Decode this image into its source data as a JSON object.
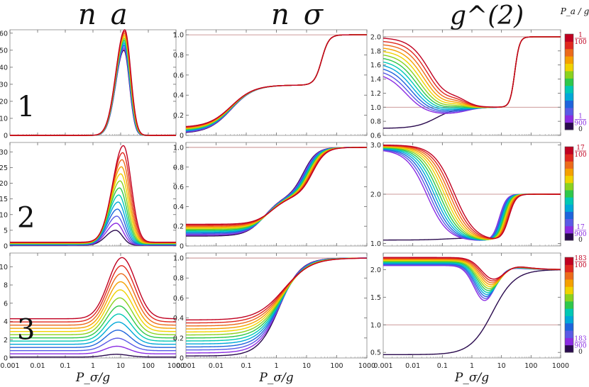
{
  "column_titles": [
    "n_a",
    "n_σ",
    "g^(2)"
  ],
  "colorbar_label": "P_a / g",
  "row_labels": [
    "1",
    "2",
    "3"
  ],
  "x_axis_label": "P_σ/g",
  "x_ticks": [
    "0.001",
    "0.01",
    "0.1",
    "1",
    "10",
    "100",
    "1000"
  ],
  "colors": {
    "palette": [
      "#2a0a4e",
      "#8a2be2",
      "#5a5ae6",
      "#1e64dc",
      "#00a8d8",
      "#00c8b4",
      "#2ec84a",
      "#8ad21e",
      "#f0d200",
      "#f5a000",
      "#ec6a1a",
      "#e0281e",
      "#c00020"
    ],
    "reference_line": "#a04040",
    "tick_red": "#c00020",
    "tick_purple": "#8a2be2"
  },
  "colorbars": [
    {
      "top_num": "1",
      "top_den": "100",
      "low_num": "1",
      "low_den": "900",
      "zero": "0"
    },
    {
      "top_num": "17",
      "top_den": "100",
      "low_num": "17",
      "low_den": "900",
      "zero": "0"
    },
    {
      "top_num": "183",
      "top_den": "100",
      "low_num": "183",
      "low_den": "900",
      "zero": "0"
    }
  ],
  "chart_data": [
    {
      "type": "line",
      "panel": "row1-na",
      "title": "n_a",
      "xlabel": "",
      "ylabel": "",
      "x_scale": "log10",
      "xlim": [
        0.001,
        1000
      ],
      "ylim": [
        0,
        62
      ],
      "yticks": [
        0,
        10,
        20,
        30,
        40,
        50,
        60
      ],
      "ytick_labels": [
        "0",
        "10",
        "20",
        "30",
        "40",
        "50",
        "60"
      ],
      "ref_lines": [],
      "model": {
        "kind": "peak",
        "base": [
          0,
          0
        ],
        "peak": [
          50,
          62
        ],
        "center": [
          1.12,
          1.15
        ],
        "wl": [
          0.42,
          0.45
        ],
        "wr": [
          0.28,
          0.3
        ]
      }
    },
    {
      "type": "line",
      "panel": "row1-ns",
      "title": "n_σ",
      "xlabel": "",
      "ylabel": "",
      "x_scale": "log10",
      "xlim": [
        0.001,
        1000
      ],
      "ylim": [
        0,
        1.05
      ],
      "yticks": [
        0,
        0.2,
        0.4,
        0.6,
        0.8,
        1.0
      ],
      "ytick_labels": [
        "0",
        "0.2",
        "0.4",
        "0.6",
        "0.8",
        "1.0"
      ],
      "ref_lines": [
        1.0
      ],
      "model": {
        "kind": "step2",
        "base": [
          0.02,
          0.08
        ],
        "mid": 0.5,
        "mid_x": [
          -1.5,
          -1.5
        ],
        "mid_s": 0.38,
        "top_x": [
          1.5,
          1.5
        ],
        "top_s": 0.12
      }
    },
    {
      "type": "line",
      "panel": "row1-g2",
      "title": "g^(2)",
      "xlabel": "",
      "ylabel": "",
      "x_scale": "log10",
      "xlim": [
        0.001,
        1000
      ],
      "ylim": [
        0.6,
        2.1
      ],
      "yticks": [
        0.6,
        0.8,
        1.0,
        1.2,
        1.4,
        1.6,
        1.8,
        2.0
      ],
      "ytick_labels": [
        "0.6",
        "0.8",
        "1.0",
        "1.2",
        "1.4",
        "1.6",
        "1.8",
        "2.0"
      ],
      "ref_lines": [
        1.0,
        2.0
      ],
      "model": {
        "kind": "g2a",
        "start": [
          1.45,
          1.99
        ],
        "drop_c": [
          -2.3,
          -1.4
        ],
        "drop_s": 0.35,
        "dip": [
          0.88,
          1.0
        ],
        "dip_c": [
          -0.8,
          -0.6
        ],
        "dip_w": 0.35,
        "bump": [
          0,
          0.08
        ],
        "rise_c": 1.45,
        "rise_s": 0.08,
        "bottom": [
          0.7,
          0.92
        ]
      }
    },
    {
      "type": "line",
      "panel": "row2-na",
      "title": "n_a",
      "xlabel": "",
      "ylabel": "",
      "x_scale": "log10",
      "xlim": [
        0.001,
        1000
      ],
      "ylim": [
        0,
        33
      ],
      "yticks": [
        0,
        5,
        10,
        15,
        20,
        25,
        30
      ],
      "ytick_labels": [
        "0",
        "5",
        "10",
        "15",
        "20",
        "25",
        "30"
      ],
      "ref_lines": [],
      "model": {
        "kind": "peak",
        "base": [
          0.2,
          1.2
        ],
        "peak": [
          5,
          32
        ],
        "center": [
          0.82,
          1.1
        ],
        "wl": [
          0.5,
          0.55
        ],
        "wr": [
          0.35,
          0.4
        ]
      }
    },
    {
      "type": "line",
      "panel": "row2-ns",
      "title": "n_σ",
      "xlabel": "",
      "ylabel": "",
      "x_scale": "log10",
      "xlim": [
        0.001,
        1000
      ],
      "ylim": [
        0,
        1.05
      ],
      "yticks": [
        0,
        0.2,
        0.4,
        0.6,
        0.8,
        1.0
      ],
      "ytick_labels": [
        "0",
        "0.2",
        "0.4",
        "0.6",
        "0.8",
        "1.0"
      ],
      "ref_lines": [
        1.0
      ],
      "model": {
        "kind": "step2",
        "base": [
          0.1,
          0.22
        ],
        "mid": 0.5,
        "mid_x": [
          -0.4,
          -0.15
        ],
        "mid_s": 0.3,
        "top_x": [
          0.9,
          1.2
        ],
        "top_s": 0.22
      }
    },
    {
      "type": "line",
      "panel": "row2-g2",
      "title": "g^(2)",
      "xlabel": "",
      "ylabel": "",
      "x_scale": "log10",
      "xlim": [
        0.001,
        1000
      ],
      "ylim": [
        0.95,
        3.05
      ],
      "yticks": [
        1.0,
        2.0,
        3.0
      ],
      "ytick_labels": [
        "1.0",
        "2.0",
        "3.0"
      ],
      "ref_lines": [
        2.0
      ],
      "model": {
        "kind": "g2b",
        "start": [
          2.9,
          3.0
        ],
        "drop_c": [
          -1.6,
          -0.6
        ],
        "drop_s": 0.35,
        "valley": 1.05,
        "rise_c": [
          0.9,
          1.25
        ],
        "rise_s": 0.12,
        "end": 2.0,
        "bottom": [
          1.07,
          1.12
        ]
      }
    },
    {
      "type": "line",
      "panel": "row3-na",
      "title": "n_a",
      "xlabel": "",
      "ylabel": "",
      "x_scale": "log10",
      "xlim": [
        0.001,
        1000
      ],
      "ylim": [
        0,
        11.5
      ],
      "yticks": [
        0,
        2,
        4,
        6,
        8,
        10
      ],
      "ytick_labels": [
        "0",
        "2",
        "4",
        "6",
        "8",
        "10"
      ],
      "ref_lines": [],
      "model": {
        "kind": "peak",
        "base": [
          0.1,
          4.3
        ],
        "peak": [
          0.4,
          11
        ],
        "center": [
          0.85,
          1.05
        ],
        "wl": [
          0.6,
          0.7
        ],
        "wr": [
          0.6,
          0.7
        ]
      }
    },
    {
      "type": "line",
      "panel": "row3-ns",
      "title": "n_σ",
      "xlabel": "",
      "ylabel": "",
      "x_scale": "log10",
      "xlim": [
        0.001,
        1000
      ],
      "ylim": [
        0,
        1.05
      ],
      "yticks": [
        0,
        0.2,
        0.4,
        0.6,
        0.8,
        1.0
      ],
      "ytick_labels": [
        "0",
        "0.2",
        "0.4",
        "0.6",
        "0.8",
        "1.0"
      ],
      "ref_lines": [
        1.0
      ],
      "model": {
        "kind": "step1",
        "base": [
          0.02,
          0.38
        ],
        "center": [
          0.1,
          0.25
        ],
        "s": [
          0.35,
          0.45
        ]
      }
    },
    {
      "type": "line",
      "panel": "row3-g2",
      "title": "g^(2)",
      "xlabel": "",
      "ylabel": "",
      "x_scale": "log10",
      "xlim": [
        0.001,
        1000
      ],
      "ylim": [
        0.4,
        2.3
      ],
      "yticks": [
        0.5,
        1.0,
        1.5,
        2.0
      ],
      "ytick_labels": [
        "0.5",
        "1.0",
        "1.5",
        "2.0"
      ],
      "ref_lines": [
        1.0
      ],
      "model": {
        "kind": "g2c",
        "start": [
          2.06,
          2.22
        ],
        "dip": [
          0.65,
          0.35
        ],
        "dip_c": [
          0.4,
          0.7
        ],
        "dip_w": [
          0.5,
          0.55
        ],
        "end": 2.0,
        "bottom": [
          0.46,
          0.45
        ]
      }
    }
  ]
}
